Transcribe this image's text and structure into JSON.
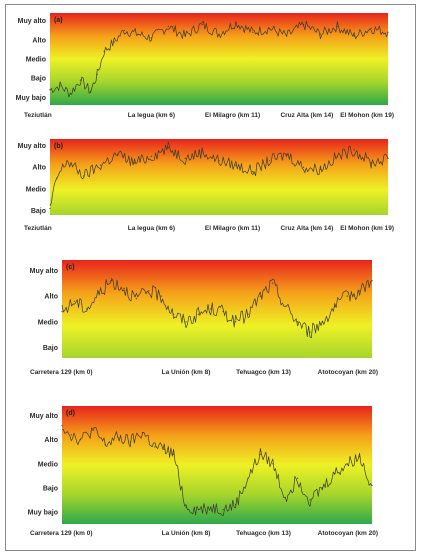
{
  "colors": {
    "very_high": "#e8231d",
    "high": "#f5a019",
    "medium": "#eef125",
    "low": "#a6d52c",
    "very_low": "#2ea84a",
    "trace": "#3a3a2c"
  },
  "chart_data": [
    {
      "type": "line",
      "panel_label": "(a)",
      "y_levels": [
        "Muy alto",
        "Alto",
        "Medio",
        "Bajo",
        "Muy bajo"
      ],
      "y_values": [
        5,
        4,
        3,
        2,
        1
      ],
      "ylim": [
        0.6,
        5.4
      ],
      "x_ticks": [
        {
          "label": "Teziutlán",
          "pos": 0.0
        },
        {
          "label": "La legua (km 6)",
          "pos": 0.3
        },
        {
          "label": "El Milagro (km 11)",
          "pos": 0.54
        },
        {
          "label": "Cruz Alta (km 14)",
          "pos": 0.76
        },
        {
          "label": "El Mohon (km 19)",
          "pos": 1.0
        }
      ],
      "grid": false,
      "series": [
        {
          "x": [
            0.0,
            0.03,
            0.06,
            0.09,
            0.12,
            0.14,
            0.16,
            0.19,
            0.22,
            0.26,
            0.3,
            0.35,
            0.4,
            0.45,
            0.5,
            0.55,
            0.6,
            0.65,
            0.7,
            0.75,
            0.8,
            0.85,
            0.9,
            0.95,
            1.0
          ],
          "values": [
            1.4,
            1.6,
            1.2,
            1.9,
            1.3,
            2.2,
            3.4,
            3.9,
            4.5,
            4.3,
            4.1,
            4.7,
            4.2,
            4.8,
            4.3,
            4.9,
            4.4,
            4.6,
            4.2,
            4.8,
            4.3,
            4.7,
            4.2,
            4.6,
            4.4
          ]
        }
      ]
    },
    {
      "type": "line",
      "panel_label": "(b)",
      "y_levels": [
        "Muy alto",
        "Alto",
        "Medio",
        "Bajo"
      ],
      "y_values": [
        4,
        3,
        2,
        1
      ],
      "ylim": [
        0.8,
        4.3
      ],
      "x_ticks": [
        {
          "label": "Teziutlán",
          "pos": 0.0
        },
        {
          "label": "La legua (km 6)",
          "pos": 0.3
        },
        {
          "label": "El Milagro (km 11)",
          "pos": 0.54
        },
        {
          "label": "Cruz Alta (km 14)",
          "pos": 0.76
        },
        {
          "label": "El Mohon (km 19)",
          "pos": 1.0
        }
      ],
      "grid": false,
      "series": [
        {
          "x": [
            0.0,
            0.02,
            0.05,
            0.1,
            0.15,
            0.2,
            0.25,
            0.3,
            0.35,
            0.4,
            0.45,
            0.5,
            0.55,
            0.6,
            0.65,
            0.7,
            0.75,
            0.8,
            0.85,
            0.9,
            0.95,
            1.0
          ],
          "values": [
            1.1,
            2.5,
            3.3,
            2.6,
            3.1,
            3.6,
            3.2,
            3.5,
            3.9,
            3.4,
            3.7,
            3.3,
            3.1,
            2.8,
            3.3,
            3.6,
            3.0,
            2.9,
            3.5,
            3.8,
            3.2,
            3.4
          ]
        }
      ]
    },
    {
      "type": "line",
      "panel_label": "(c)",
      "y_levels": [
        "Muy alto",
        "Alto",
        "Medio",
        "Bajo"
      ],
      "y_values": [
        4,
        3,
        2,
        1
      ],
      "ylim": [
        0.6,
        4.4
      ],
      "x_ticks": [
        {
          "label": "Carretera 129 (km 0)",
          "pos": 0.0
        },
        {
          "label": "La Unión (km 8)",
          "pos": 0.4
        },
        {
          "label": "Tehuagco (km 13)",
          "pos": 0.65
        },
        {
          "label": "Atotocoyan (km 20)",
          "pos": 1.0
        }
      ],
      "grid": false,
      "series": [
        {
          "x": [
            0.0,
            0.04,
            0.08,
            0.12,
            0.16,
            0.2,
            0.24,
            0.28,
            0.32,
            0.36,
            0.4,
            0.44,
            0.48,
            0.52,
            0.56,
            0.6,
            0.64,
            0.68,
            0.72,
            0.76,
            0.8,
            0.84,
            0.88,
            0.92,
            0.96,
            1.0
          ],
          "values": [
            2.4,
            2.8,
            2.5,
            3.1,
            3.6,
            3.3,
            2.9,
            3.2,
            3.0,
            2.3,
            2.0,
            2.3,
            2.5,
            2.4,
            2.0,
            2.3,
            3.0,
            3.5,
            2.6,
            2.0,
            1.6,
            2.0,
            2.6,
            3.0,
            3.2,
            3.6
          ]
        }
      ]
    },
    {
      "type": "line",
      "panel_label": "(d)",
      "y_levels": [
        "Muy alto",
        "Alto",
        "Medio",
        "Bajo",
        "Muy bajo"
      ],
      "y_values": [
        5,
        4,
        3,
        2,
        1
      ],
      "ylim": [
        0.5,
        5.4
      ],
      "x_ticks": [
        {
          "label": "Carretera 129 (km 0)",
          "pos": 0.0
        },
        {
          "label": "La Unión (km 8)",
          "pos": 0.4
        },
        {
          "label": "Tehuagco (km 13)",
          "pos": 0.65
        },
        {
          "label": "Atotocoyan (km 20)",
          "pos": 1.0
        }
      ],
      "grid": false,
      "series": [
        {
          "x": [
            0.0,
            0.03,
            0.06,
            0.1,
            0.14,
            0.18,
            0.22,
            0.26,
            0.3,
            0.33,
            0.36,
            0.4,
            0.44,
            0.48,
            0.52,
            0.56,
            0.6,
            0.64,
            0.68,
            0.72,
            0.76,
            0.8,
            0.84,
            0.88,
            0.92,
            0.96,
            1.0
          ],
          "values": [
            4.6,
            4.2,
            4.0,
            4.4,
            3.8,
            4.1,
            3.9,
            4.3,
            3.7,
            3.6,
            3.4,
            1.2,
            1.1,
            1.2,
            1.1,
            1.3,
            2.4,
            3.4,
            3.0,
            1.6,
            2.4,
            1.5,
            2.0,
            2.6,
            3.0,
            3.3,
            2.1
          ]
        }
      ]
    }
  ]
}
